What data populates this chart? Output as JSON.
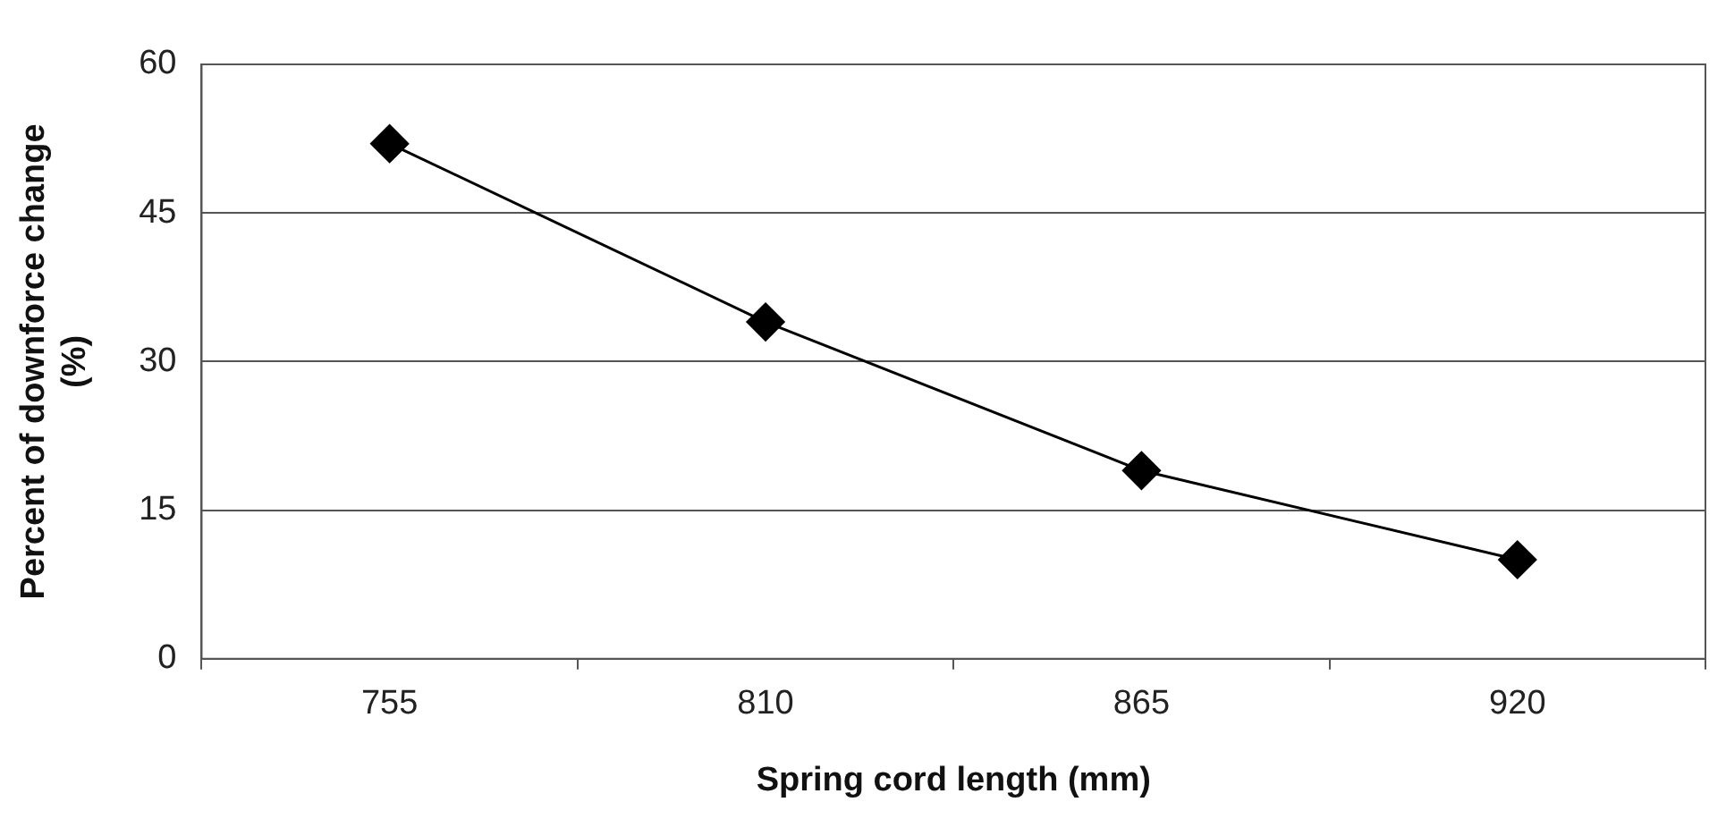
{
  "chart_data": {
    "type": "line",
    "xlabel": "Spring cord length (mm)",
    "ylabel": "Percent of downforce change\n(%)",
    "categories": [
      "755",
      "810",
      "865",
      "920"
    ],
    "series": [
      {
        "color": "#000000",
        "values": [
          52,
          34,
          19,
          10
        ]
      }
    ],
    "ylim": [
      0,
      60
    ],
    "yticks": [
      0,
      15,
      30,
      45,
      60
    ],
    "grid": "y",
    "marker": "diamond",
    "line_style": "solid",
    "legend": false
  }
}
